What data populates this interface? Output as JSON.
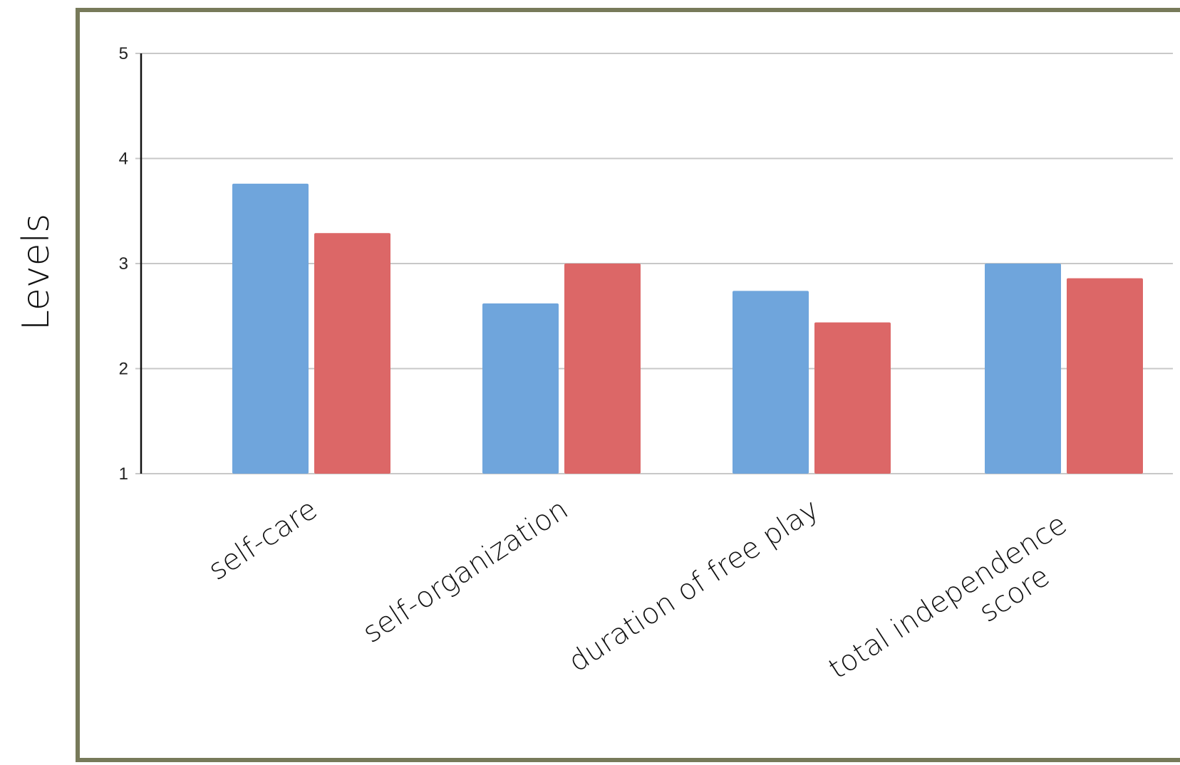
{
  "chart_data": {
    "type": "bar",
    "title": "",
    "xlabel": "",
    "ylabel": "Levels",
    "ylim": [
      1,
      5
    ],
    "yticks": [
      "1",
      "2",
      "3",
      "4",
      "5"
    ],
    "grid": true,
    "legend": "none",
    "categories": [
      [
        "self-care"
      ],
      [
        "self-organization"
      ],
      [
        "duration of free play"
      ],
      [
        "total independence",
        "score"
      ]
    ],
    "series": [
      {
        "color": "#6fa5dc",
        "values": [
          3.76,
          2.62,
          2.74,
          3.0
        ]
      },
      {
        "color": "#dc6767",
        "values": [
          3.29,
          3.0,
          2.44,
          2.86
        ]
      }
    ]
  }
}
